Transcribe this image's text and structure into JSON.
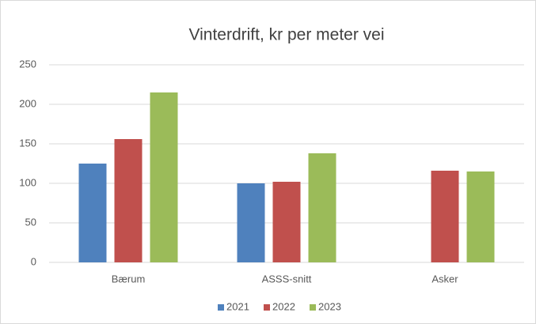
{
  "chart_data": {
    "type": "bar",
    "title": "Vinterdrift, kr per meter vei",
    "categories": [
      "Bærum",
      "ASSS-snitt",
      "Asker"
    ],
    "series": [
      {
        "name": "2021",
        "color": "#4f81bd",
        "values": [
          125,
          100,
          null
        ]
      },
      {
        "name": "2022",
        "color": "#c0504d",
        "values": [
          156,
          102,
          116
        ]
      },
      {
        "name": "2023",
        "color": "#9bbb59",
        "values": [
          215,
          138,
          115
        ]
      }
    ],
    "ylim": [
      0,
      250
    ],
    "yticks": [
      0,
      50,
      100,
      150,
      200,
      250
    ],
    "grid": true,
    "legend": "bottom"
  }
}
